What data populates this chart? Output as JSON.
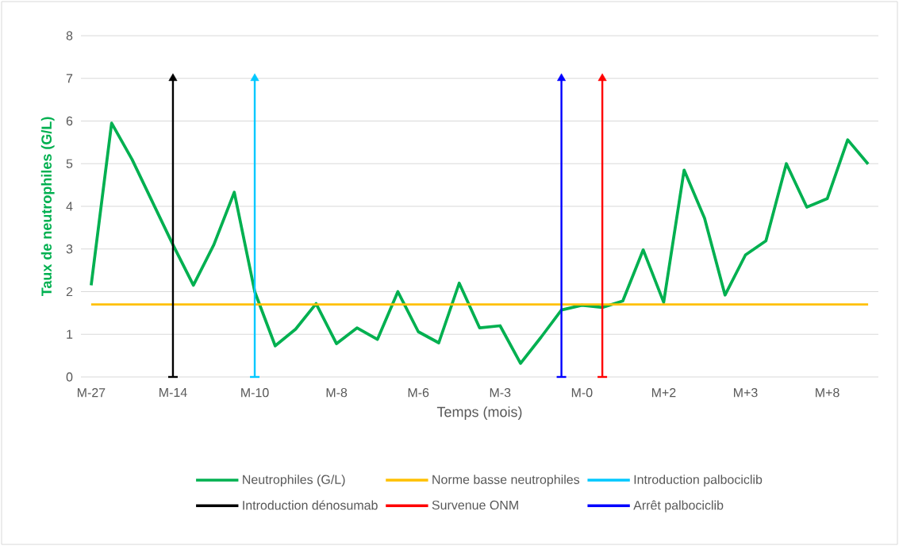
{
  "chart_data": {
    "type": "line",
    "xlabel": "Temps (mois)",
    "ylabel": "Taux de neutrophiles (G/L)",
    "categories": [
      "M-27",
      null,
      null,
      null,
      "M-14",
      null,
      null,
      null,
      "M-10",
      null,
      null,
      null,
      "M-8",
      null,
      null,
      null,
      "M-6",
      null,
      null,
      null,
      "M-3",
      null,
      null,
      null,
      "M-0",
      null,
      null,
      null,
      "M+2",
      null,
      null,
      null,
      "M+3",
      null,
      null,
      null,
      "M+8",
      null,
      null
    ],
    "ylim": [
      0,
      8
    ],
    "yticks": [
      0,
      1,
      2,
      3,
      4,
      5,
      6,
      7,
      8
    ],
    "grid": "y",
    "legend": "bottom",
    "line_style": "solid",
    "series": [
      {
        "name": "Neutrophiles (G/L)",
        "color": "#00b050",
        "values": [
          2.15,
          5.95,
          5.1,
          4.1,
          3.1,
          2.15,
          3.1,
          4.33,
          2.0,
          0.73,
          1.12,
          1.72,
          0.78,
          1.15,
          0.88,
          2.0,
          1.06,
          0.8,
          2.2,
          1.15,
          1.2,
          0.32,
          0.93,
          1.57,
          1.68,
          1.63,
          1.78,
          2.98,
          1.75,
          4.85,
          3.72,
          1.92,
          2.86,
          3.19,
          5.0,
          3.98,
          4.18,
          5.56,
          4.99
        ]
      },
      {
        "name": "Norme basse neutrophiles",
        "color": "#ffc000",
        "values": [
          1.7,
          1.7,
          1.7,
          1.7,
          1.7,
          1.7,
          1.7,
          1.7,
          1.7,
          1.7,
          1.7,
          1.7,
          1.7,
          1.7,
          1.7,
          1.7,
          1.7,
          1.7,
          1.7,
          1.7,
          1.7,
          1.7,
          1.7,
          1.7,
          1.7,
          1.7,
          1.7,
          1.7,
          1.7,
          1.7,
          1.7,
          1.7,
          1.7,
          1.7,
          1.7,
          1.7,
          1.7,
          1.7,
          1.7
        ]
      },
      {
        "name": "Introduction palbociclib",
        "color": "#00c8ff",
        "marker": "triangle",
        "values": [
          null,
          null,
          null,
          null,
          null,
          null,
          null,
          null,
          7,
          null,
          null,
          null,
          null,
          null,
          null,
          null,
          null,
          null,
          null,
          null,
          null,
          null,
          null,
          null,
          null,
          null,
          null,
          null,
          null,
          null,
          null,
          null,
          null,
          null,
          null,
          null,
          null,
          null,
          null
        ],
        "errors": [
          null,
          null,
          null,
          null,
          null,
          null,
          null,
          null,
          [
            0,
            7
          ],
          null,
          null,
          null,
          null,
          null,
          null,
          null,
          null,
          null,
          null,
          null,
          null,
          null,
          null,
          null,
          null,
          null,
          null,
          null,
          null,
          null,
          null,
          null,
          null,
          null,
          null,
          null,
          null,
          null,
          null
        ]
      },
      {
        "name": "Introduction dénosumab",
        "color": "#000000",
        "marker": "triangle",
        "values": [
          null,
          null,
          null,
          null,
          7,
          null,
          null,
          null,
          null,
          null,
          null,
          null,
          null,
          null,
          null,
          null,
          null,
          null,
          null,
          null,
          null,
          null,
          null,
          null,
          null,
          null,
          null,
          null,
          null,
          null,
          null,
          null,
          null,
          null,
          null,
          null,
          null,
          null,
          null
        ],
        "errors": [
          null,
          null,
          null,
          null,
          [
            0,
            7
          ],
          null,
          null,
          null,
          null,
          null,
          null,
          null,
          null,
          null,
          null,
          null,
          null,
          null,
          null,
          null,
          null,
          null,
          null,
          null,
          null,
          null,
          null,
          null,
          null,
          null,
          null,
          null,
          null,
          null,
          null,
          null,
          null,
          null,
          null
        ]
      },
      {
        "name": "Survenue ONM",
        "color": "#ff0000",
        "marker": "triangle",
        "values": [
          null,
          null,
          null,
          null,
          null,
          null,
          null,
          null,
          null,
          null,
          null,
          null,
          null,
          null,
          null,
          null,
          null,
          null,
          null,
          null,
          null,
          null,
          null,
          null,
          null,
          7,
          null,
          null,
          null,
          null,
          null,
          null,
          null,
          null,
          null,
          null,
          null,
          null,
          null
        ],
        "errors": [
          null,
          null,
          null,
          null,
          null,
          null,
          null,
          null,
          null,
          null,
          null,
          null,
          null,
          null,
          null,
          null,
          null,
          null,
          null,
          null,
          null,
          null,
          null,
          null,
          null,
          [
            0,
            7
          ],
          null,
          null,
          null,
          null,
          null,
          null,
          null,
          null,
          null,
          null,
          null,
          null,
          null
        ]
      },
      {
        "name": "Arrêt palbociclib",
        "color": "#0000ff",
        "marker": "triangle",
        "values": [
          null,
          null,
          null,
          null,
          null,
          null,
          null,
          null,
          null,
          null,
          null,
          null,
          null,
          null,
          null,
          null,
          null,
          null,
          null,
          null,
          null,
          null,
          null,
          7,
          null,
          null,
          null,
          null,
          null,
          null,
          null,
          null,
          null,
          null,
          null,
          null,
          null,
          null,
          null
        ],
        "errors": [
          null,
          null,
          null,
          null,
          null,
          null,
          null,
          null,
          null,
          null,
          null,
          null,
          null,
          null,
          null,
          null,
          null,
          null,
          null,
          null,
          null,
          null,
          null,
          [
            0,
            7
          ],
          null,
          null,
          null,
          null,
          null,
          null,
          null,
          null,
          null,
          null,
          null,
          null,
          null,
          null,
          null
        ]
      }
    ]
  }
}
